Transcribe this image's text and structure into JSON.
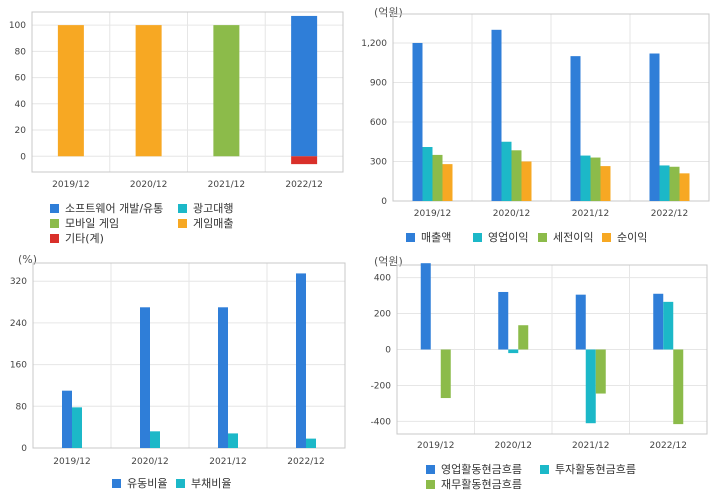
{
  "colors": {
    "blue": "#2f7ed8",
    "teal": "#1cb8c8",
    "green": "#8cbb4a",
    "orange": "#f7a823",
    "red": "#d9302a",
    "grid": "#e6e6e6",
    "frame": "#c8c8c8"
  },
  "chart_data": [
    {
      "id": "revenue-mix",
      "type": "bar",
      "stacked": true,
      "unit": "",
      "categories": [
        "2019/12",
        "2020/12",
        "2021/12",
        "2022/12"
      ],
      "ylim": [
        -12,
        110
      ],
      "yticks": [
        0,
        20,
        40,
        60,
        80,
        100
      ],
      "series": [
        {
          "name": "소프트웨어 개발/유통",
          "color": "#2f7ed8",
          "values": [
            0,
            0,
            0,
            107
          ]
        },
        {
          "name": "광고대행",
          "color": "#1cb8c8",
          "values": [
            0,
            0,
            0,
            0
          ]
        },
        {
          "name": "모바일 게임",
          "color": "#8cbb4a",
          "values": [
            0,
            0,
            100,
            0
          ]
        },
        {
          "name": "게임매출",
          "color": "#f7a823",
          "values": [
            100,
            100,
            0,
            0
          ]
        },
        {
          "name": "기타(계)",
          "color": "#d9302a",
          "values": [
            0,
            0,
            0,
            -6
          ]
        }
      ],
      "legend": [
        [
          "소프트웨어 개발/유통",
          "광고대행"
        ],
        [
          "모바일 게임",
          "게임매출"
        ],
        [
          "기타(계)"
        ]
      ]
    },
    {
      "id": "income",
      "type": "bar",
      "unit": "(억원)",
      "categories": [
        "2019/12",
        "2020/12",
        "2021/12",
        "2022/12"
      ],
      "ylim": [
        0,
        1420
      ],
      "yticks": [
        0,
        300,
        600,
        900,
        1200
      ],
      "yticklabels": [
        "0",
        "300",
        "600",
        "900",
        "1,200"
      ],
      "series": [
        {
          "name": "매출액",
          "color": "#2f7ed8",
          "values": [
            1200,
            1300,
            1100,
            1120
          ]
        },
        {
          "name": "영업이익",
          "color": "#1cb8c8",
          "values": [
            410,
            450,
            345,
            270
          ]
        },
        {
          "name": "세전이익",
          "color": "#8cbb4a",
          "values": [
            350,
            385,
            330,
            260
          ]
        },
        {
          "name": "순이익",
          "color": "#f7a823",
          "values": [
            280,
            300,
            265,
            210
          ]
        }
      ]
    },
    {
      "id": "ratios",
      "type": "bar",
      "unit": "(%)",
      "categories": [
        "2019/12",
        "2020/12",
        "2021/12",
        "2022/12"
      ],
      "ylim": [
        0,
        355
      ],
      "yticks": [
        0,
        80,
        160,
        240,
        320
      ],
      "series": [
        {
          "name": "유동비율",
          "color": "#2f7ed8",
          "values": [
            110,
            270,
            270,
            335
          ]
        },
        {
          "name": "부채비율",
          "color": "#1cb8c8",
          "values": [
            78,
            32,
            28,
            18
          ]
        }
      ]
    },
    {
      "id": "cashflow",
      "type": "bar",
      "unit": "(억원)",
      "categories": [
        "2019/12",
        "2020/12",
        "2021/12",
        "2022/12"
      ],
      "ylim": [
        -470,
        470
      ],
      "yticks": [
        -400,
        -200,
        0,
        200,
        400
      ],
      "yticklabels": [
        "-400",
        "-200",
        "0",
        "200",
        "400"
      ],
      "series": [
        {
          "name": "영업활동현금흐름",
          "color": "#2f7ed8",
          "values": [
            480,
            320,
            305,
            310
          ]
        },
        {
          "name": "투자활동현금흐름",
          "color": "#1cb8c8",
          "values": [
            0,
            -20,
            -410,
            265
          ]
        },
        {
          "name": "재무활동현금흐름",
          "color": "#8cbb4a",
          "values": [
            -270,
            135,
            -245,
            -415
          ]
        }
      ],
      "legend": [
        [
          "영업활동현금흐름",
          "투자활동현금흐름"
        ],
        [
          "재무활동현금흐름"
        ]
      ]
    }
  ]
}
